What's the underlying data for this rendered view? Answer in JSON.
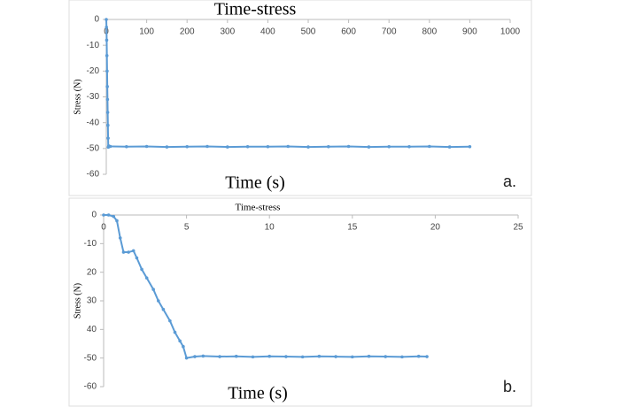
{
  "chart_data": [
    {
      "type": "line",
      "title": "Time-stress",
      "x_label": "Time (s)",
      "y_label": "Stress (N)",
      "panel_label": "a.",
      "color": "#5b9bd5",
      "x": [
        0,
        0.5,
        1,
        1.5,
        2,
        2.5,
        3,
        3.5,
        4,
        4.5,
        5,
        6,
        10,
        50,
        100,
        150,
        200,
        250,
        300,
        350,
        400,
        450,
        500,
        550,
        600,
        650,
        700,
        750,
        800,
        850,
        900
      ],
      "values": [
        0,
        -3,
        -8,
        -14,
        -20,
        -26,
        -31,
        -36,
        -41,
        -46,
        -49.5,
        -49,
        -49.2,
        -49.3,
        -49.2,
        -49.4,
        -49.3,
        -49.2,
        -49.4,
        -49.3,
        -49.3,
        -49.2,
        -49.4,
        -49.3,
        -49.2,
        -49.4,
        -49.3,
        -49.3,
        -49.2,
        -49.4,
        -49.3
      ],
      "xlim": [
        0,
        1000
      ],
      "xticks": [
        0,
        100,
        200,
        300,
        400,
        500,
        600,
        700,
        800,
        900,
        1000
      ],
      "ylim": [
        -60,
        0
      ],
      "yticks": [
        0,
        -10,
        -20,
        -30,
        -40,
        -50,
        -60
      ]
    },
    {
      "type": "line",
      "title": "Time-stress",
      "x_label": "Time (s)",
      "y_label": "Stress (N)",
      "panel_label": "b.",
      "color": "#5b9bd5",
      "x": [
        0,
        0.3,
        0.6,
        0.8,
        1,
        1.2,
        1.5,
        1.8,
        2,
        2.3,
        2.6,
        3,
        3.3,
        3.6,
        4,
        4.3,
        4.6,
        4.8,
        5,
        5.5,
        6,
        7,
        8,
        9,
        10,
        11,
        12,
        13,
        14,
        15,
        16,
        17,
        18,
        19,
        19.5
      ],
      "values": [
        0,
        0,
        -0.5,
        -2,
        -8,
        -13,
        -13,
        -12.5,
        -15,
        -19,
        -22,
        -26,
        -30,
        -33,
        -37,
        -41,
        -44,
        -46,
        -50,
        -49.5,
        -49.3,
        -49.5,
        -49.4,
        -49.6,
        -49.4,
        -49.5,
        -49.6,
        -49.4,
        -49.5,
        -49.6,
        -49.4,
        -49.5,
        -49.6,
        -49.4,
        -49.5
      ],
      "xlim": [
        0,
        25
      ],
      "xticks": [
        0,
        5,
        10,
        15,
        20,
        25
      ],
      "ylim": [
        -60,
        0
      ],
      "yticks": [
        0,
        -10,
        {
          "value": -20,
          "label": "20"
        },
        {
          "value": -30,
          "label": "30"
        },
        {
          "value": -40,
          "label": "40"
        },
        -50,
        -60
      ]
    }
  ]
}
